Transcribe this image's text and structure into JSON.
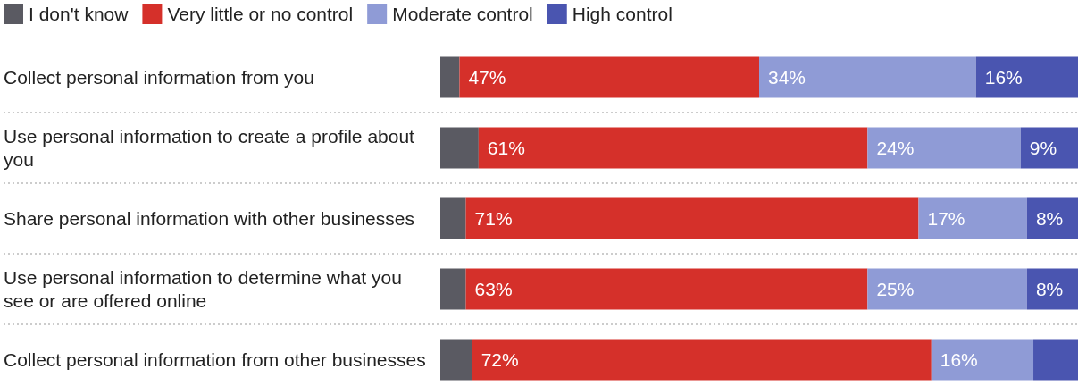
{
  "chart_data": {
    "type": "bar",
    "orientation": "horizontal",
    "stacked": true,
    "legend": "top left",
    "tick_labels": "y",
    "xlim": [
      0,
      100
    ],
    "categories": [
      "Collect personal information from you",
      "Use personal information to create a profile about you",
      "Share personal information with other businesses",
      "Use personal information to determine what you see or are offered online",
      "Collect personal information from other businesses"
    ],
    "series": [
      {
        "name": "I don't know",
        "color": "#5a5a62",
        "values": [
          3,
          6,
          4,
          4,
          5
        ],
        "value_labels": [
          null,
          null,
          null,
          null,
          null
        ]
      },
      {
        "name": "Very little or no control",
        "color": "#d5302a",
        "values": [
          47,
          61,
          71,
          63,
          72
        ],
        "value_labels": [
          "47%",
          "61%",
          "71%",
          "63%",
          "72%"
        ]
      },
      {
        "name": "Moderate control",
        "color": "#8f9bd6",
        "values": [
          34,
          24,
          17,
          25,
          16
        ],
        "value_labels": [
          "34%",
          "24%",
          "17%",
          "25%",
          "16%"
        ]
      },
      {
        "name": "High control",
        "color": "#4a55b0",
        "values": [
          16,
          9,
          8,
          8,
          7
        ],
        "value_labels": [
          "16%",
          "9%",
          "8%",
          "8%",
          null
        ]
      }
    ]
  }
}
